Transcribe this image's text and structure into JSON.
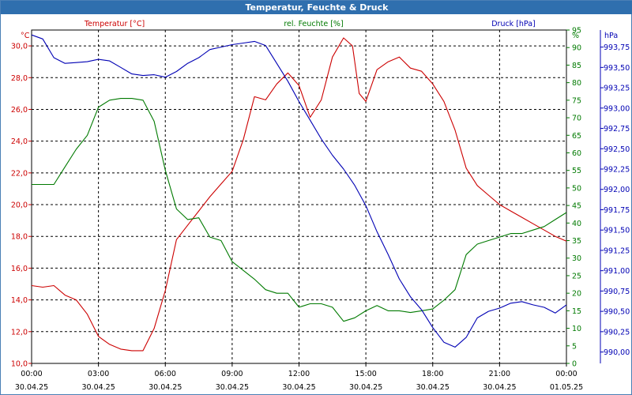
{
  "window": {
    "title": "Temperatur, Feuchte & Druck"
  },
  "colors": {
    "temperature": "#cc0000",
    "humidity": "#007a00",
    "pressure": "#0000b4",
    "titlebar": "#2f6fae",
    "grid": "#000000"
  },
  "chart_data": {
    "type": "line",
    "title": "Temperatur, Feuchte & Druck",
    "grid": true,
    "x_ticks": [
      {
        "time": "00:00",
        "date": "30.04.25"
      },
      {
        "time": "03:00",
        "date": "30.04.25"
      },
      {
        "time": "06:00",
        "date": "30.04.25"
      },
      {
        "time": "09:00",
        "date": "30.04.25"
      },
      {
        "time": "12:00",
        "date": "30.04.25"
      },
      {
        "time": "15:00",
        "date": "30.04.25"
      },
      {
        "time": "18:00",
        "date": "30.04.25"
      },
      {
        "time": "21:00",
        "date": "30.04.25"
      },
      {
        "time": "00:00",
        "date": "01.05.25"
      }
    ],
    "x_range_hours": [
      0,
      24
    ],
    "axes": {
      "temperature": {
        "unit": "°C",
        "ylim": [
          10,
          31
        ],
        "ticks": [
          "10,0",
          "12,0",
          "14,0",
          "16,0",
          "18,0",
          "20,0",
          "22,0",
          "24,0",
          "26,0",
          "28,0",
          "30,0"
        ]
      },
      "humidity": {
        "unit": "%",
        "ylim": [
          0,
          95
        ],
        "ticks": [
          "0",
          "5",
          "10",
          "15",
          "20",
          "25",
          "30",
          "35",
          "40",
          "45",
          "50",
          "55",
          "60",
          "65",
          "70",
          "75",
          "80",
          "85",
          "90",
          "95"
        ]
      },
      "pressure": {
        "unit": "hPa",
        "ylim": [
          989.86,
          993.96
        ],
        "ticks": [
          "990,00",
          "990,25",
          "990,50",
          "990,75",
          "991,00",
          "991,25",
          "991,50",
          "991,75",
          "992,00",
          "992,25",
          "992,50",
          "992,75",
          "993,00",
          "993,25",
          "993,50",
          "993,75"
        ]
      }
    },
    "series": [
      {
        "name": "Temperatur [°C]",
        "axis": "temperature",
        "x": [
          0,
          0.5,
          1,
          1.5,
          2,
          2.5,
          3,
          3.5,
          4,
          4.5,
          5,
          5.5,
          6,
          6.5,
          7,
          7.5,
          8,
          8.5,
          9,
          9.5,
          10,
          10.5,
          11,
          11.5,
          12,
          12.5,
          13,
          13.5,
          14,
          14.4,
          14.7,
          15,
          15.5,
          16,
          16.5,
          17,
          17.5,
          18,
          18.5,
          19,
          19.5,
          20,
          20.5,
          21,
          21.5,
          22,
          22.5,
          23,
          23.5,
          24
        ],
        "values": [
          14.9,
          14.8,
          14.9,
          14.3,
          14.0,
          13.1,
          11.7,
          11.2,
          10.9,
          10.8,
          10.8,
          12.2,
          14.6,
          17.8,
          18.7,
          19.6,
          20.5,
          21.3,
          22.1,
          24.1,
          26.8,
          26.6,
          27.6,
          28.3,
          27.5,
          25.5,
          26.6,
          29.3,
          30.5,
          30.0,
          27.0,
          26.5,
          28.5,
          29.0,
          29.3,
          28.6,
          28.4,
          27.6,
          26.5,
          24.7,
          22.3,
          21.2,
          20.6,
          20.0,
          19.6,
          19.2,
          18.8,
          18.4,
          18.0,
          17.7
        ]
      },
      {
        "name": "rel. Feuchte [%]",
        "axis": "humidity",
        "x": [
          0,
          0.5,
          1,
          1.5,
          2,
          2.5,
          3,
          3.5,
          4,
          4.5,
          5,
          5.5,
          6,
          6.5,
          7,
          7.5,
          8,
          8.5,
          9,
          9.5,
          10,
          10.5,
          11,
          11.5,
          12,
          12.5,
          13,
          13.5,
          14,
          14.5,
          15,
          15.5,
          16,
          16.5,
          17,
          17.5,
          18,
          18.5,
          19,
          19.5,
          20,
          20.5,
          21,
          21.5,
          22,
          22.5,
          23,
          23.5,
          24
        ],
        "values": [
          51,
          51,
          51,
          56,
          61,
          65,
          73,
          75,
          75.5,
          75.5,
          75,
          69,
          55,
          44,
          41,
          41.5,
          36,
          35,
          29,
          26.5,
          24,
          21,
          20,
          20,
          16,
          17,
          17,
          16,
          12,
          13,
          15,
          16.5,
          15,
          15,
          14.5,
          15,
          15.5,
          18,
          21,
          31,
          34,
          35,
          36,
          37,
          37,
          38,
          39,
          41,
          43
        ]
      },
      {
        "name": "Druck [hPa]",
        "axis": "pressure",
        "x": [
          0,
          0.5,
          1,
          1.5,
          2,
          2.5,
          3,
          3.5,
          4,
          4.5,
          5,
          5.5,
          6,
          6.5,
          7,
          7.5,
          8,
          8.5,
          9,
          9.5,
          10,
          10.5,
          11,
          11.5,
          12,
          12.5,
          13,
          13.5,
          14,
          14.5,
          15,
          15.5,
          16,
          16.5,
          17,
          17.5,
          18,
          18.5,
          19,
          19.5,
          20,
          20.5,
          21,
          21.5,
          22,
          22.5,
          23,
          23.5,
          24
        ],
        "values": [
          993.9,
          993.85,
          993.62,
          993.55,
          993.56,
          993.57,
          993.6,
          993.58,
          993.5,
          993.42,
          993.4,
          993.41,
          993.38,
          993.45,
          993.55,
          993.62,
          993.72,
          993.75,
          993.78,
          993.8,
          993.82,
          993.77,
          993.55,
          993.33,
          993.08,
          992.85,
          992.62,
          992.42,
          992.25,
          992.05,
          991.8,
          991.48,
          991.2,
          990.9,
          990.68,
          990.52,
          990.3,
          990.12,
          990.06,
          990.18,
          990.42,
          990.5,
          990.54,
          990.6,
          990.62,
          990.58,
          990.55,
          990.48,
          990.58
        ]
      }
    ]
  }
}
